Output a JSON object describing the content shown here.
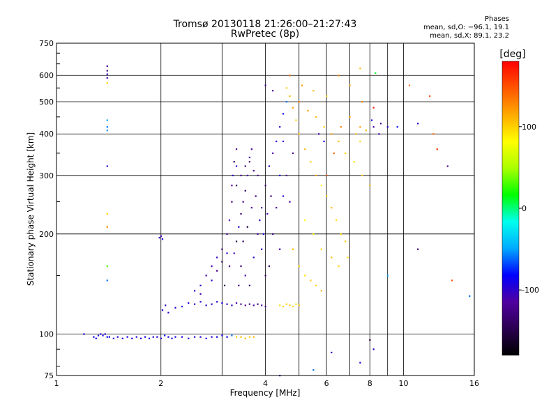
{
  "chart_data": {
    "type": "scatter",
    "title": "Tromsø 20130118 21:26:00–21:27:43",
    "subtitle": "RwPretec (8p)",
    "xlabel": "Frequency [MHz]",
    "ylabel": "Stationary phase Virtual Height [km]",
    "x_scale": "log",
    "y_scale": "log",
    "xlim": [
      1,
      16
    ],
    "ylim": [
      75,
      750
    ],
    "x_ticks": [
      1,
      2,
      4,
      6,
      8,
      10,
      16
    ],
    "y_ticks": [
      75,
      100,
      200,
      300,
      400,
      500,
      600,
      750
    ],
    "grid": true,
    "phase_info": {
      "heading": "Phases",
      "line_o": "mean, sd,O: −96.1, 19.1",
      "line_x": "mean, sd,X: 89.1, 23.2"
    },
    "colorbar": {
      "label": "[deg]",
      "range": [
        -180,
        180
      ],
      "ticks": [
        100,
        0,
        -100
      ],
      "colors": [
        "#000000",
        "#2a0050",
        "#5000a0",
        "#0000ff",
        "#00aaff",
        "#00ffee",
        "#00ff00",
        "#aaff00",
        "#ffff00",
        "#ffaa00",
        "#ff5500",
        "#ff0000"
      ]
    },
    "series": [
      {
        "points": [
          [
            1.28,
            98,
            -90
          ],
          [
            1.3,
            97,
            -85
          ],
          [
            1.32,
            99,
            -95
          ],
          [
            1.34,
            100,
            -100
          ],
          [
            1.36,
            99,
            -90
          ],
          [
            1.38,
            100,
            -95
          ],
          [
            1.4,
            98,
            -80
          ],
          [
            1.42,
            98,
            -92
          ],
          [
            1.46,
            97,
            -94
          ],
          [
            1.5,
            98,
            -96
          ],
          [
            1.55,
            97,
            -95
          ],
          [
            1.6,
            98,
            -93
          ],
          [
            1.65,
            97,
            -96
          ],
          [
            1.7,
            98,
            -94
          ],
          [
            1.75,
            97,
            -95
          ],
          [
            1.8,
            98,
            -92
          ],
          [
            1.85,
            97,
            -90
          ],
          [
            1.9,
            98,
            -96
          ],
          [
            1.95,
            98,
            -94
          ],
          [
            2.0,
            97,
            -95
          ],
          [
            2.05,
            99,
            -80
          ],
          [
            2.1,
            98,
            -90
          ],
          [
            2.15,
            97,
            -96
          ],
          [
            2.2,
            98,
            -92
          ],
          [
            2.3,
            98,
            -95
          ],
          [
            2.4,
            97,
            -90
          ],
          [
            2.5,
            98,
            -94
          ],
          [
            2.6,
            98,
            -96
          ],
          [
            2.7,
            97,
            -92
          ],
          [
            2.8,
            98,
            -95
          ],
          [
            2.9,
            98,
            -90
          ],
          [
            3.0,
            99,
            -88
          ],
          [
            3.1,
            98,
            -85
          ],
          [
            3.2,
            99,
            -60
          ],
          [
            3.3,
            98,
            100
          ],
          [
            3.4,
            98,
            105
          ],
          [
            3.5,
            97,
            110
          ],
          [
            3.6,
            98,
            102
          ],
          [
            3.7,
            98,
            108
          ],
          [
            1.2,
            100,
            -100
          ],
          [
            2.02,
            118,
            -95
          ],
          [
            2.06,
            122,
            -100
          ],
          [
            2.1,
            116,
            -98
          ],
          [
            2.2,
            120,
            -96
          ],
          [
            2.3,
            121,
            -94
          ],
          [
            2.4,
            124,
            -97
          ],
          [
            2.5,
            123,
            -95
          ],
          [
            2.6,
            125,
            -99
          ],
          [
            2.7,
            122,
            -100
          ],
          [
            2.8,
            123,
            -96
          ],
          [
            2.9,
            125,
            -98
          ],
          [
            3.0,
            124,
            -95
          ],
          [
            3.1,
            123,
            -100
          ],
          [
            3.2,
            122,
            -105
          ],
          [
            3.3,
            124,
            -110
          ],
          [
            3.4,
            123,
            -120
          ],
          [
            3.5,
            122,
            -115
          ],
          [
            3.6,
            123,
            -125
          ],
          [
            3.7,
            122,
            -118
          ],
          [
            3.8,
            123,
            -122
          ],
          [
            3.9,
            122,
            -120
          ],
          [
            4.0,
            121,
            -110
          ],
          [
            4.4,
            122,
            95
          ],
          [
            4.5,
            121,
            102
          ],
          [
            4.6,
            123,
            98
          ],
          [
            4.7,
            122,
            105
          ],
          [
            4.8,
            121,
            100
          ],
          [
            4.9,
            123,
            96
          ],
          [
            5.0,
            122,
            104
          ],
          [
            1.98,
            195,
            -100
          ],
          [
            2.0,
            197,
            -110
          ],
          [
            2.02,
            193,
            -95
          ],
          [
            1.4,
            640,
            -120
          ],
          [
            1.4,
            620,
            -130
          ],
          [
            1.4,
            605,
            -100
          ],
          [
            1.4,
            590,
            -110
          ],
          [
            1.4,
            570,
            100
          ],
          [
            1.4,
            440,
            -50
          ],
          [
            1.4,
            420,
            -60
          ],
          [
            1.4,
            410,
            -55
          ],
          [
            1.4,
            320,
            -100
          ],
          [
            1.4,
            230,
            100
          ],
          [
            1.4,
            210,
            130
          ],
          [
            1.4,
            160,
            30
          ],
          [
            1.4,
            145,
            -60
          ],
          [
            2.6,
            140,
            -100
          ],
          [
            2.7,
            150,
            -120
          ],
          [
            2.8,
            160,
            -110
          ],
          [
            2.9,
            170,
            -100
          ],
          [
            3.0,
            180,
            -130
          ],
          [
            3.1,
            200,
            -120
          ],
          [
            3.15,
            220,
            -110
          ],
          [
            3.2,
            250,
            -130
          ],
          [
            3.2,
            280,
            -120
          ],
          [
            3.22,
            300,
            -100
          ],
          [
            3.25,
            330,
            -140
          ],
          [
            3.3,
            360,
            -120
          ],
          [
            3.3,
            190,
            -150
          ],
          [
            3.35,
            210,
            -100
          ],
          [
            3.4,
            230,
            -130
          ],
          [
            3.45,
            250,
            -120
          ],
          [
            3.5,
            270,
            -140
          ],
          [
            3.55,
            300,
            -110
          ],
          [
            3.6,
            330,
            -130
          ],
          [
            3.65,
            360,
            -120
          ],
          [
            3.7,
            170,
            -100
          ],
          [
            3.5,
            150,
            -110
          ],
          [
            3.6,
            140,
            -140
          ],
          [
            3.4,
            160,
            -130
          ],
          [
            3.8,
            200,
            -120
          ],
          [
            3.9,
            240,
            -110
          ],
          [
            4.0,
            280,
            -130
          ],
          [
            4.0,
            150,
            -140
          ],
          [
            3.9,
            180,
            -100
          ],
          [
            3.8,
            300,
            -120
          ],
          [
            4.1,
            320,
            -100
          ],
          [
            4.2,
            350,
            -110
          ],
          [
            4.3,
            380,
            -90
          ],
          [
            4.4,
            420,
            -100
          ],
          [
            4.5,
            460,
            -80
          ],
          [
            4.6,
            500,
            -60
          ],
          [
            4.2,
            200,
            -130
          ],
          [
            4.3,
            240,
            -120
          ],
          [
            4.4,
            180,
            -110
          ],
          [
            4.5,
            260,
            -100
          ],
          [
            4.6,
            300,
            -120
          ],
          [
            4.1,
            160,
            -140
          ],
          [
            3.05,
            140,
            -150
          ],
          [
            3.15,
            160,
            -120
          ],
          [
            3.25,
            175,
            -110
          ],
          [
            3.35,
            140,
            -130
          ],
          [
            3.45,
            190,
            -140
          ],
          [
            3.55,
            210,
            -150
          ],
          [
            3.65,
            240,
            -120
          ],
          [
            3.75,
            260,
            -130
          ],
          [
            3.85,
            220,
            -100
          ],
          [
            3.95,
            200,
            -90
          ],
          [
            4.05,
            230,
            -110
          ],
          [
            4.15,
            260,
            -130
          ],
          [
            2.5,
            135,
            -100
          ],
          [
            2.6,
            132,
            -110
          ],
          [
            2.8,
            145,
            -100
          ],
          [
            2.9,
            155,
            -120
          ],
          [
            3.0,
            165,
            -140
          ],
          [
            3.1,
            175,
            -100
          ],
          [
            3.3,
            280,
            -150
          ],
          [
            3.4,
            300,
            -120
          ],
          [
            3.5,
            320,
            -130
          ],
          [
            3.6,
            340,
            -110
          ],
          [
            3.7,
            310,
            -120
          ],
          [
            3.3,
            320,
            -100
          ],
          [
            4.6,
            550,
            100
          ],
          [
            4.7,
            520,
            110
          ],
          [
            4.8,
            480,
            120
          ],
          [
            4.9,
            440,
            100
          ],
          [
            5.0,
            400,
            105
          ],
          [
            5.2,
            360,
            110
          ],
          [
            5.4,
            330,
            100
          ],
          [
            5.6,
            300,
            115
          ],
          [
            5.8,
            280,
            90
          ],
          [
            6.0,
            260,
            100
          ],
          [
            6.2,
            240,
            110
          ],
          [
            6.4,
            220,
            95
          ],
          [
            6.6,
            200,
            100
          ],
          [
            6.8,
            190,
            105
          ],
          [
            5.0,
            500,
            130
          ],
          [
            5.3,
            470,
            120
          ],
          [
            5.6,
            450,
            110
          ],
          [
            5.9,
            420,
            100
          ],
          [
            6.2,
            400,
            120
          ],
          [
            6.5,
            380,
            110
          ],
          [
            6.8,
            350,
            100
          ],
          [
            7.2,
            330,
            95
          ],
          [
            7.6,
            300,
            100
          ],
          [
            8.0,
            280,
            110
          ],
          [
            4.8,
            180,
            110
          ],
          [
            5.0,
            160,
            100
          ],
          [
            5.2,
            150,
            95
          ],
          [
            5.4,
            145,
            105
          ],
          [
            5.6,
            140,
            100
          ],
          [
            5.8,
            135,
            110
          ],
          [
            6.0,
            300,
            150
          ],
          [
            6.3,
            350,
            140
          ],
          [
            6.6,
            420,
            130
          ],
          [
            7.0,
            450,
            120
          ],
          [
            7.3,
            400,
            110
          ],
          [
            7.6,
            500,
            130
          ],
          [
            4.7,
            600,
            140
          ],
          [
            5.1,
            560,
            120
          ],
          [
            5.5,
            540,
            110
          ],
          [
            6.0,
            520,
            100
          ],
          [
            6.5,
            600,
            130
          ],
          [
            7.0,
            560,
            120
          ],
          [
            5.2,
            220,
            80
          ],
          [
            5.5,
            200,
            90
          ],
          [
            5.8,
            180,
            100
          ],
          [
            6.2,
            170,
            110
          ],
          [
            6.5,
            160,
            100
          ],
          [
            6.9,
            170,
            95
          ],
          [
            7.5,
            380,
            100
          ],
          [
            7.8,
            410,
            110
          ],
          [
            7.5,
            420,
            120
          ],
          [
            8.2,
            480,
            170
          ],
          [
            8.1,
            440,
            -90
          ],
          [
            8.2,
            420,
            -110
          ],
          [
            8.6,
            430,
            -120
          ],
          [
            9.0,
            420,
            -100
          ],
          [
            8.5,
            400,
            -110
          ],
          [
            9.6,
            420,
            -80
          ],
          [
            11.0,
            430,
            -100
          ],
          [
            12.2,
            400,
            140
          ],
          [
            12.5,
            360,
            160
          ],
          [
            13.4,
            320,
            -120
          ],
          [
            10.4,
            560,
            140
          ],
          [
            11.9,
            520,
            150
          ],
          [
            7.5,
            630,
            110
          ],
          [
            8.3,
            610,
            10
          ],
          [
            8.0,
            96,
            -150
          ],
          [
            8.2,
            90,
            -100
          ],
          [
            7.5,
            82,
            -90
          ],
          [
            6.2,
            88,
            -100
          ],
          [
            5.5,
            78,
            -60
          ],
          [
            4.4,
            75,
            -100
          ],
          [
            11.0,
            180,
            -130
          ],
          [
            13.8,
            145,
            150
          ],
          [
            15.5,
            130,
            -60
          ],
          [
            9.0,
            150,
            -50
          ],
          [
            5.7,
            400,
            -110
          ],
          [
            5.9,
            380,
            -90
          ],
          [
            4.0,
            560,
            -110
          ],
          [
            4.2,
            540,
            -120
          ],
          [
            4.5,
            380,
            -100
          ],
          [
            4.8,
            350,
            -120
          ],
          [
            4.4,
            300,
            -90
          ],
          [
            4.7,
            250,
            -110
          ]
        ]
      }
    ]
  }
}
